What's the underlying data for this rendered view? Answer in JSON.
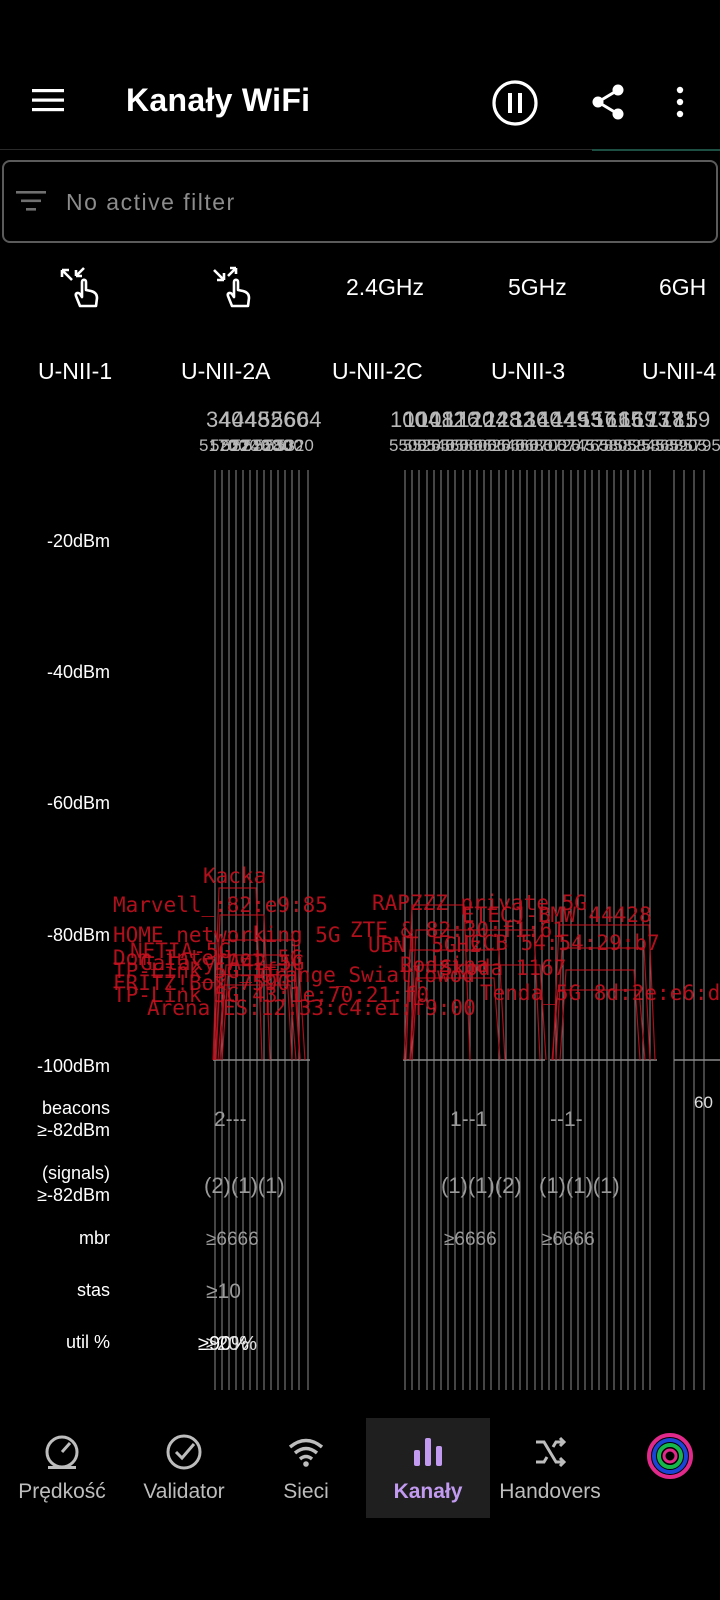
{
  "app_bar": {
    "title": "Kanały WiFi",
    "menu_icon": "hamburger-menu-icon",
    "pause_icon": "pause-circle-icon",
    "share_icon": "share-icon",
    "more_icon": "more-vert-icon"
  },
  "filter": {
    "text": "No active filter",
    "icon": "filter-list-icon"
  },
  "toolbar": {
    "zoom_out_icon": "pinch-zoom-out-icon",
    "zoom_in_icon": "pinch-zoom-in-icon",
    "bands": [
      "2.4GHz",
      "5GHz",
      "6GH"
    ]
  },
  "band_groups": [
    "U-NII-1",
    "U-NII-2A",
    "U-NII-2C",
    "U-NII-3",
    "U-NII-4"
  ],
  "chart": {
    "y_labels": [
      "-20dBm",
      "-40dBm",
      "-60dBm",
      "-80dBm",
      "-100dBm"
    ],
    "row_labels": {
      "beacons": "beacons\n≥-82dBm",
      "signals": "(signals)\n≥-82dBm",
      "mbr": "mbr",
      "stas": "stas",
      "util": "util %"
    },
    "channel_header_top": [
      "34",
      "40",
      "44",
      "48",
      "52",
      "56",
      "60",
      "64"
    ],
    "channel_header_top_right": [
      "100",
      "104",
      "108",
      "112",
      "116",
      "120",
      "124",
      "128",
      "132",
      "136",
      "140",
      "144",
      "149",
      "153",
      "157",
      "161",
      "165",
      "169",
      "173",
      "177",
      "181",
      "159"
    ],
    "freq_header": [
      "5170",
      "5200",
      "5220",
      "5240",
      "5260",
      "5280",
      "5300",
      "5320"
    ],
    "freq_header_right": [
      "5500",
      "5520",
      "5540",
      "5560",
      "5580",
      "5600",
      "5620",
      "5640",
      "5660",
      "5680",
      "5700",
      "5720",
      "5745",
      "5765",
      "5785",
      "5805",
      "5825",
      "5845",
      "5865",
      "5885",
      "5905",
      "5795"
    ],
    "network_labels": [
      "Kacka",
      "Marvell_:82:e9:85",
      "RAPZZZ private 5G",
      "ETECJ-BMW 44428",
      "HOME networking 5G",
      "ZTE_& 82:30:f1:61",
      "UBNT 5GHz ",
      "CCB 54:54:29:b7",
      "Dom_Internet_5G",
      "Galaxy_A42_5G",
      "TP-Link_5G_1f",
      "Rodzina",
      "Skoda 1167",
      "FRITZ!Box 7590",
      "TP-Link 5G 43:1e:70:21:f0",
      "Arena ES:12:33:c4:e1:f9:00",
      "Tenda_5G 8d:2e:e6:d1",
      "NETIA-5G",
      "Orange_Swiatlowod"
    ],
    "stats_rows": {
      "beacons": [
        "2---",
        "1--1",
        "--1-"
      ],
      "signals": [
        "(2)(1)(1)",
        "(1)(1)(2)",
        "(1)(1)(1)"
      ],
      "mbr": [
        "≥6666",
        "≥6666",
        "≥6666"
      ],
      "stas": [
        "≥10"
      ],
      "util": [
        "≥90%",
        "≥20%"
      ]
    },
    "partial_right_label": "60",
    "colors": {
      "network": "#c4121f",
      "grid": "#8a8a8a",
      "header": "#b8b8b8"
    }
  },
  "bottom_nav": [
    {
      "label": "Prędkość",
      "icon": "speedometer-icon",
      "active": false
    },
    {
      "label": "Validator",
      "icon": "check-circle-icon",
      "active": false
    },
    {
      "label": "Sieci",
      "icon": "wifi-icon",
      "active": false
    },
    {
      "label": "Kanały",
      "icon": "bar-chart-icon",
      "active": true
    },
    {
      "label": "Handovers",
      "icon": "shuffle-icon",
      "active": false
    },
    {
      "label": "",
      "icon": "app-logo-icon",
      "active": false
    }
  ],
  "accent_color": "#c29af0"
}
